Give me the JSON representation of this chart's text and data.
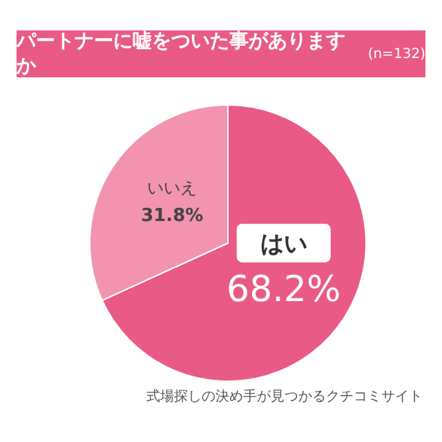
{
  "chart_data": {
    "type": "pie",
    "title": "パートナーに嘘をついた事がありますか",
    "subtitle": "(n=132)",
    "categories": [
      "はい",
      "いいえ"
    ],
    "values": [
      68.2,
      31.8
    ],
    "value_labels": [
      "68.2%",
      "31.8%"
    ],
    "colors": [
      "#ea5a86",
      "#f293b0"
    ],
    "annotations": [
      "式場探しの決め手が見つかるクチコミサイト"
    ]
  }
}
